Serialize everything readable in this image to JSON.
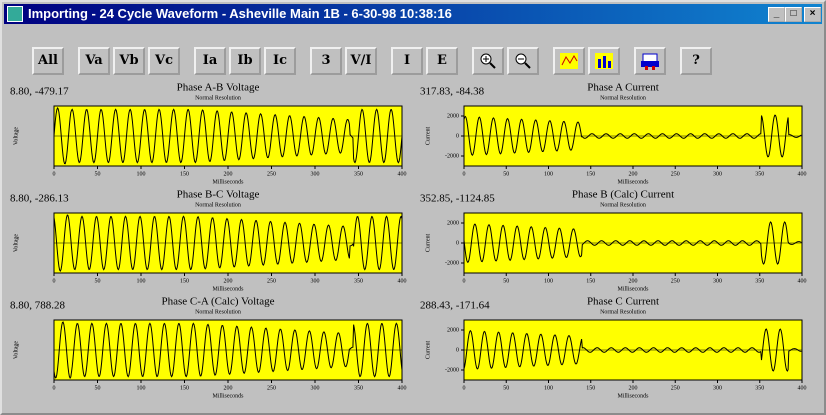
{
  "window": {
    "title": "Importing - 24 Cycle Waveform - Asheville Main 1B - 6-30-98 10:38:16"
  },
  "toolbar": {
    "buttons": [
      "All",
      "Va",
      "Vb",
      "Vc",
      "Ia",
      "Ib",
      "Ic",
      "3",
      "V/I",
      "I",
      "E"
    ],
    "help": "?"
  },
  "panels": [
    {
      "readout": "8.80, -479.17",
      "title": "Phase A-B Voltage",
      "subtitle": "Normal Resolution",
      "ylabel": "Voltage",
      "xlabel": "Milliseconds",
      "xlim": [
        0,
        400
      ],
      "xticks": [
        0,
        50,
        100,
        150,
        200,
        250,
        300,
        350,
        400
      ]
    },
    {
      "readout": "317.83, -84.38",
      "title": "Phase A Current",
      "subtitle": "Normal Resolution",
      "ylabel": "Current",
      "xlabel": "Milliseconds",
      "xlim": [
        0,
        400
      ],
      "xticks": [
        0,
        50,
        100,
        150,
        200,
        250,
        300,
        350,
        400
      ],
      "ylim": [
        -3000,
        3000
      ],
      "yticks": [
        2000,
        0,
        -2000
      ]
    },
    {
      "readout": "8.80, -286.13",
      "title": "Phase B-C Voltage",
      "subtitle": "Normal Resolution",
      "ylabel": "Voltage",
      "xlabel": "Milliseconds",
      "xlim": [
        0,
        400
      ],
      "xticks": [
        0,
        50,
        100,
        150,
        200,
        250,
        300,
        350,
        400
      ]
    },
    {
      "readout": "352.85, -1124.85",
      "title": "Phase B (Calc) Current",
      "subtitle": "Normal Resolution",
      "ylabel": "Current",
      "xlabel": "Milliseconds",
      "xlim": [
        0,
        400
      ],
      "xticks": [
        0,
        50,
        100,
        150,
        200,
        250,
        300,
        350,
        400
      ],
      "ylim": [
        -3000,
        3000
      ],
      "yticks": [
        2000,
        0,
        -2000
      ]
    },
    {
      "readout": "8.80, 788.28",
      "title": "Phase C-A (Calc) Voltage",
      "subtitle": "Normal Resolution",
      "ylabel": "Voltage",
      "xlabel": "Milliseconds",
      "xlim": [
        0,
        400
      ],
      "xticks": [
        0,
        50,
        100,
        150,
        200,
        250,
        300,
        350,
        400
      ]
    },
    {
      "readout": "288.43, -171.64",
      "title": "Phase C Current",
      "subtitle": "Normal Resolution",
      "ylabel": "Current",
      "xlabel": "Milliseconds",
      "xlim": [
        0,
        400
      ],
      "xticks": [
        0,
        50,
        100,
        150,
        200,
        250,
        300,
        350,
        400
      ],
      "ylim": [
        -3000,
        3000
      ],
      "yticks": [
        2000,
        0,
        -2000
      ]
    }
  ]
}
